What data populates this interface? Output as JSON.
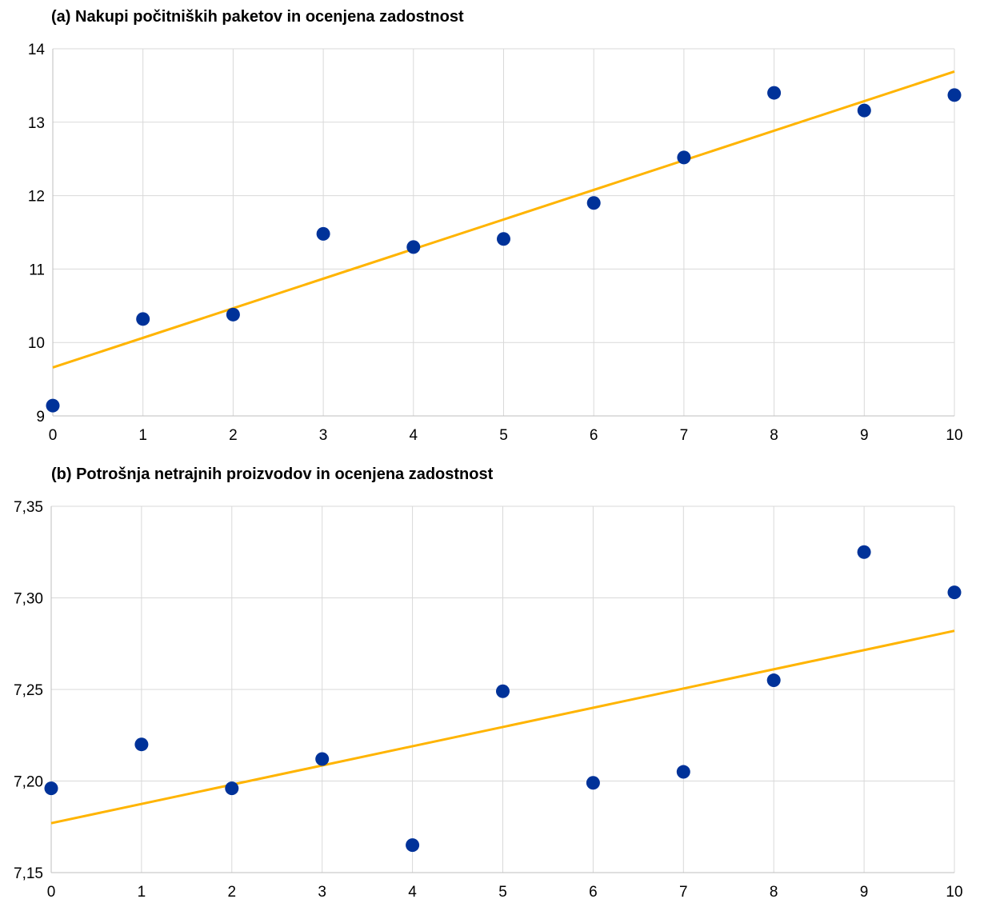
{
  "chart_data": [
    {
      "type": "scatter",
      "title": "(a) Nakupi počitniških paketov in ocenjena zadostnost",
      "xlabel": "",
      "ylabel": "",
      "xlim": [
        0,
        10
      ],
      "ylim": [
        9,
        14
      ],
      "x_ticks": [
        "0",
        "1",
        "2",
        "3",
        "4",
        "5",
        "6",
        "7",
        "8",
        "9",
        "10"
      ],
      "y_ticks": [
        "9",
        "10",
        "11",
        "12",
        "13",
        "14"
      ],
      "grid": true,
      "legend": "none",
      "series": [
        {
          "kind": "scatter",
          "color": "#003299",
          "x": [
            0,
            1,
            2,
            3,
            4,
            5,
            6,
            7,
            8,
            9,
            10
          ],
          "y": [
            9.14,
            10.32,
            10.38,
            11.48,
            11.3,
            11.41,
            11.9,
            12.52,
            13.4,
            13.16,
            13.37
          ]
        },
        {
          "kind": "trend-line",
          "color": "#ffb400",
          "x": [
            0,
            10
          ],
          "y": [
            9.66,
            13.69
          ]
        }
      ]
    },
    {
      "type": "scatter",
      "title": "(b) Potrošnja netrajnih proizvodov in ocenjena zadostnost",
      "xlabel": "",
      "ylabel": "",
      "xlim": [
        0,
        10
      ],
      "ylim": [
        7.15,
        7.35
      ],
      "x_ticks": [
        "0",
        "1",
        "2",
        "3",
        "4",
        "5",
        "6",
        "7",
        "8",
        "9",
        "10"
      ],
      "y_ticks": [
        "7,15",
        "7,20",
        "7,25",
        "7,30",
        "7,35"
      ],
      "grid": true,
      "legend": "none",
      "series": [
        {
          "kind": "scatter",
          "color": "#003299",
          "x": [
            0,
            1,
            2,
            3,
            4,
            5,
            6,
            7,
            8,
            9,
            10
          ],
          "y": [
            7.196,
            7.22,
            7.196,
            7.212,
            7.165,
            7.249,
            7.199,
            7.205,
            7.255,
            7.325,
            7.303
          ]
        },
        {
          "kind": "trend-line",
          "color": "#ffb400",
          "x": [
            0,
            10
          ],
          "y": [
            7.177,
            7.282
          ]
        }
      ]
    }
  ]
}
